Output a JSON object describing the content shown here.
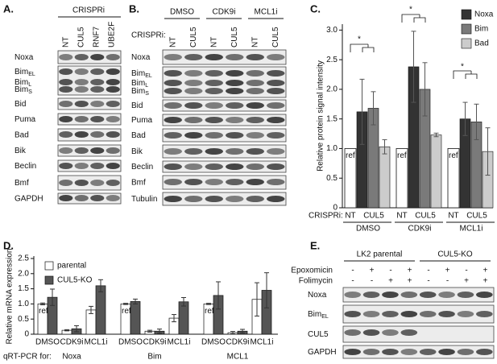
{
  "panel_labels": [
    "A.",
    "B.",
    "C.",
    "D.",
    "E."
  ],
  "blot_A": {
    "header": "CRISPRi",
    "lanes": [
      "NT",
      "CUL5",
      "RNF7",
      "UBE2F"
    ],
    "rows": [
      [
        {
          "text": "Noxa"
        }
      ],
      [
        {
          "text": "Bim",
          "sub": "EL"
        },
        {
          "text": "Bim",
          "sub": "L"
        },
        {
          "text": "Bim",
          "sub": "S"
        }
      ],
      [
        {
          "text": "Bid"
        }
      ],
      [
        {
          "text": "Puma"
        }
      ],
      [
        {
          "text": "Bad"
        }
      ],
      [
        {
          "text": "Bik"
        }
      ],
      [
        {
          "text": "Beclin"
        }
      ],
      [
        {
          "text": "Bmf"
        }
      ],
      [
        {
          "text": "GAPDH"
        }
      ]
    ]
  },
  "blot_B": {
    "groups": [
      "DMSO",
      "CDK9i",
      "MCL1i"
    ],
    "row_header": "CRISPRi:",
    "lanes": [
      "NT",
      "CUL5",
      "NT",
      "CUL5",
      "NT",
      "CUL5"
    ],
    "rows": [
      [
        {
          "text": "Noxa"
        }
      ],
      [
        {
          "text": "Bim",
          "sub": "EL"
        },
        {
          "text": "Bim",
          "sub": "L"
        },
        {
          "text": "Bim",
          "sub": "S"
        }
      ],
      [
        {
          "text": "Bid"
        }
      ],
      [
        {
          "text": "Puma"
        }
      ],
      [
        {
          "text": "Bad"
        }
      ],
      [
        {
          "text": "Bik"
        }
      ],
      [
        {
          "text": "Beclin"
        }
      ],
      [
        {
          "text": "Bmf"
        }
      ],
      [
        {
          "text": "Tubulin"
        }
      ]
    ]
  },
  "chart_C": {
    "type": "bar",
    "y_label": "Relative protein signal intensity",
    "ylim": [
      0,
      3.1
    ],
    "yticks": [
      0,
      0.5,
      {
        "value": 1,
        "label": "1.0"
      },
      1.5,
      {
        "value": 2,
        "label": "2.0"
      },
      2.5,
      {
        "value": 3,
        "label": "3.0"
      }
    ],
    "x_row_label": "CRISPRi:",
    "subcategories": [
      "NT",
      "CUL5"
    ],
    "groups": [
      "DMSO",
      "CDK9i",
      "MCL1i"
    ],
    "reference": {
      "label": "ref",
      "color": "#ffffff",
      "values": [
        1,
        1,
        1
      ]
    },
    "series": [
      {
        "name": "Noxa",
        "color": "#333333",
        "values": [
          1.62,
          2.38,
          1.5
        ],
        "errors": [
          0.55,
          0.6,
          0.28
        ]
      },
      {
        "name": "Bim",
        "color": "#7a7a7a",
        "values": [
          1.68,
          2.0,
          1.45
        ],
        "errors": [
          0.28,
          0.45,
          0.3
        ]
      },
      {
        "name": "Bad",
        "color": "#cccccc",
        "values": [
          1.03,
          1.23,
          0.95
        ],
        "errors": [
          0.12,
          0.03,
          0.4
        ]
      }
    ],
    "annotations": [
      "*",
      "*",
      "*"
    ]
  },
  "chart_D": {
    "type": "bar",
    "y_label": "Relative mRNA expression",
    "ylim": [
      0,
      2.5
    ],
    "yticks": [
      0,
      0.5,
      {
        "value": 1,
        "label": "1.0"
      },
      1.5,
      {
        "value": 2,
        "label": "2.0"
      },
      2.5
    ],
    "x_row_label": "qRT-PCR for:",
    "groups": [
      "Noxa",
      "Bim",
      "MCL1"
    ],
    "categories": [
      "DMSO",
      "CDK9i",
      "MCL1i",
      "DMSO",
      "CDK9i",
      "MCL1i",
      "DMSO",
      "CDK9i",
      "MCL1i"
    ],
    "ref_label": "ref",
    "series": [
      {
        "name": "parental",
        "color": "#ffffff",
        "values": [
          1.0,
          0.13,
          0.8,
          1.0,
          0.1,
          0.53,
          1.0,
          0.05,
          1.15
        ],
        "errors": [
          0.03,
          0.02,
          0.12,
          0.02,
          0.03,
          0.12,
          0.02,
          0.04,
          0.55
        ]
      },
      {
        "name": "CUL5-KO",
        "color": "#555555",
        "values": [
          1.22,
          0.18,
          1.6,
          1.08,
          0.1,
          1.07,
          1.28,
          0.1,
          1.45
        ],
        "errors": [
          0.27,
          0.1,
          0.2,
          0.08,
          0.07,
          0.14,
          0.45,
          0.06,
          0.58
        ]
      }
    ]
  },
  "blot_E": {
    "groups": [
      "LK2 parental",
      "CUL5-KO"
    ],
    "treatments": [
      {
        "name": "Epoxomicin",
        "signs": [
          "-",
          "+",
          "-",
          "+",
          "-",
          "+",
          "-",
          "+"
        ]
      },
      {
        "name": "Folimycin",
        "signs": [
          "-",
          "-",
          "+",
          "+",
          "-",
          "-",
          "+",
          "+"
        ]
      }
    ],
    "rows": [
      [
        {
          "text": "Noxa"
        }
      ],
      [
        {
          "text": "Bim",
          "sub": "EL"
        }
      ],
      [
        {
          "text": "CUL5"
        }
      ],
      [
        {
          "text": "GAPDH"
        }
      ]
    ]
  }
}
